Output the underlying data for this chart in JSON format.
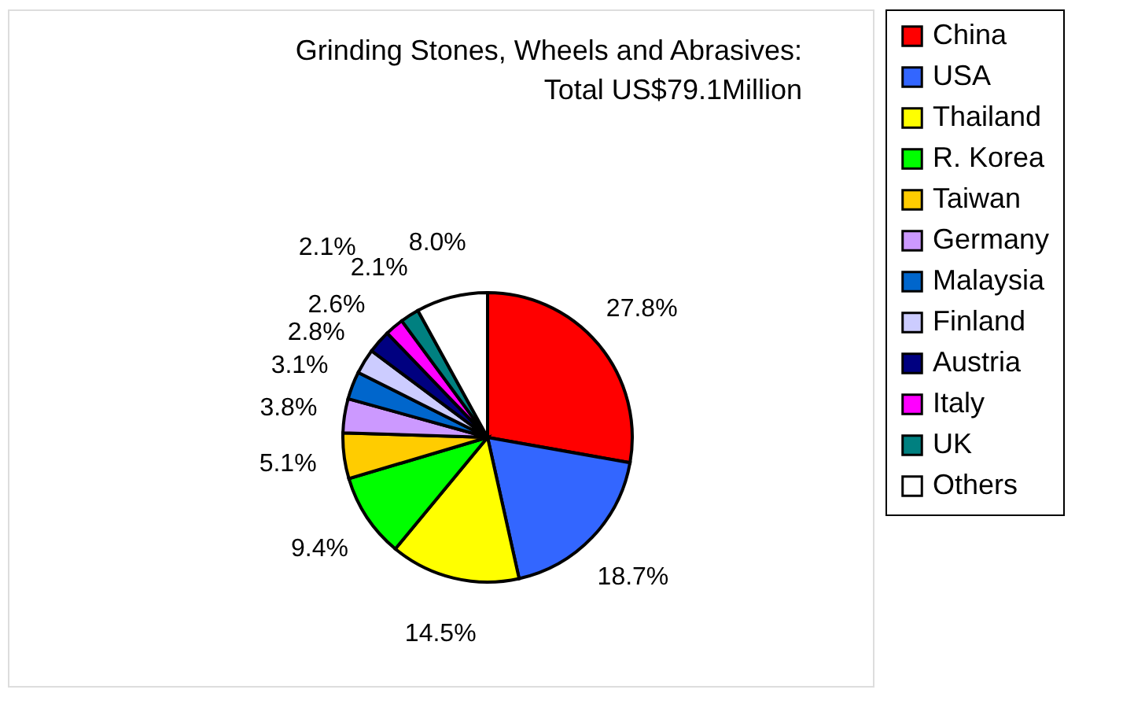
{
  "chart_data": {
    "type": "pie",
    "title": [
      "Grinding Stones, Wheels and Abrasives:",
      "Total US$79.1Million"
    ],
    "categories": [
      "China",
      "USA",
      "Thailand",
      "R. Korea",
      "Taiwan",
      "Germany",
      "Malaysia",
      "Finland",
      "Austria",
      "Italy",
      "UK",
      "Others"
    ],
    "values": [
      27.8,
      18.7,
      14.5,
      9.4,
      5.1,
      3.8,
      3.1,
      2.8,
      2.6,
      2.1,
      2.1,
      8.0
    ],
    "value_labels": [
      "27.8%",
      "18.7%",
      "14.5%",
      "9.4%",
      "5.1%",
      "3.8%",
      "3.1%",
      "2.8%",
      "2.6%",
      "2.1%",
      "2.1%",
      "8.0%"
    ],
    "colors": [
      "#ff0000",
      "#3366ff",
      "#ffff00",
      "#00ff00",
      "#ffcc00",
      "#cc99ff",
      "#0066cc",
      "#ccccff",
      "#000080",
      "#ff00ff",
      "#008080",
      "#ffffff"
    ],
    "legend": "right"
  }
}
